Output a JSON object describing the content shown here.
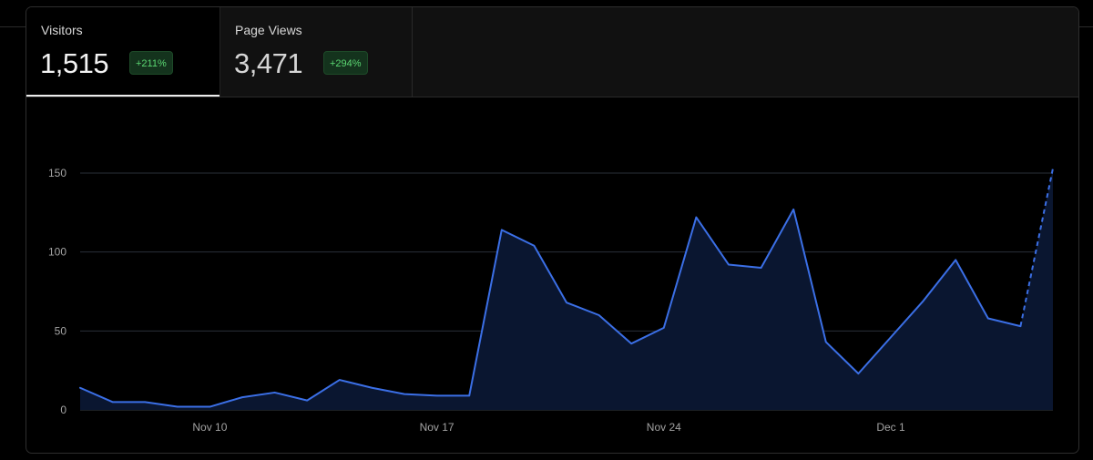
{
  "tabs": [
    {
      "label": "Visitors",
      "value": "1,515",
      "change": "+211%",
      "active": true
    },
    {
      "label": "Page Views",
      "value": "3,471",
      "change": "+294%",
      "active": false
    }
  ],
  "colors": {
    "line": "#3b6fe6",
    "area": "#0a1630",
    "grid": "#2a2f38",
    "badge_text": "#5bd672",
    "badge_bg": "#14331d"
  },
  "chart_data": {
    "type": "area",
    "title": "",
    "xlabel": "",
    "ylabel": "",
    "ylim": [
      0,
      155
    ],
    "yticks": [
      0,
      50,
      100,
      150
    ],
    "xticks": [
      {
        "label": "Nov 10",
        "x": 4
      },
      {
        "label": "Nov 17",
        "x": 11
      },
      {
        "label": "Nov 24",
        "x": 18
      },
      {
        "label": "Dec 1",
        "x": 25
      }
    ],
    "grid": true,
    "series": [
      {
        "values": [
          14,
          5,
          5,
          2,
          2,
          8,
          11,
          6,
          19,
          14,
          10,
          9,
          9,
          114,
          104,
          68,
          60,
          42,
          52,
          122,
          92,
          90,
          127,
          43,
          23,
          46,
          69,
          95,
          58,
          53,
          153
        ],
        "dashed_from_index": 29
      }
    ]
  }
}
